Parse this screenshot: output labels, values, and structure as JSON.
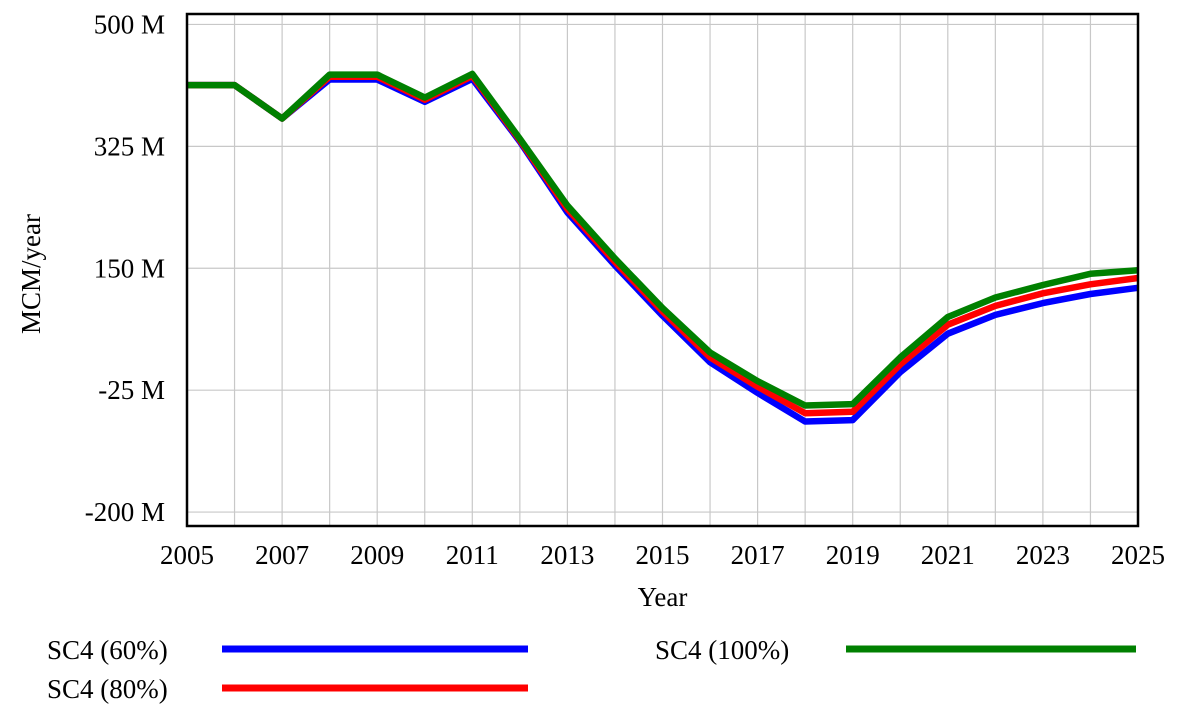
{
  "chart_data": {
    "type": "line",
    "xlabel": "Year",
    "ylabel": "MCM/year",
    "x": [
      2005,
      2006,
      2007,
      2008,
      2009,
      2010,
      2011,
      2012,
      2013,
      2014,
      2015,
      2016,
      2017,
      2018,
      2019,
      2020,
      2021,
      2022,
      2023,
      2024,
      2025
    ],
    "xlim": [
      2005,
      2025
    ],
    "ylim": [
      -220,
      515
    ],
    "x_ticks": [
      2005,
      2007,
      2009,
      2011,
      2013,
      2015,
      2017,
      2019,
      2021,
      2023,
      2025
    ],
    "x_tick_labels": [
      "2005",
      "2007",
      "2009",
      "2011",
      "2013",
      "2015",
      "2017",
      "2019",
      "2021",
      "2023",
      "2025"
    ],
    "y_ticks": [
      500,
      325,
      150,
      -25,
      -200
    ],
    "y_tick_labels": [
      "500 M",
      "325 M",
      "150 M",
      "-25 M",
      "-200 M"
    ],
    "grid": true,
    "legend_position": "bottom",
    "series": [
      {
        "name": "SC4 (60%)",
        "color": "#0000ff",
        "values": [
          413,
          413,
          365,
          421,
          421,
          389,
          422,
          332,
          230,
          154,
          82,
          15,
          -29,
          -70,
          -68,
          1,
          56,
          83,
          100,
          113,
          122
        ]
      },
      {
        "name": "SC4 (80%)",
        "color": "#ff0000",
        "values": [
          413,
          413,
          365,
          425,
          425,
          392,
          426,
          334,
          235,
          159,
          88,
          22,
          -20,
          -58,
          -56,
          12,
          69,
          96,
          114,
          127,
          136
        ]
      },
      {
        "name": "SC4 (100%)",
        "color": "#008000",
        "values": [
          413,
          413,
          365,
          428,
          428,
          395,
          429,
          336,
          240,
          164,
          93,
          29,
          -12,
          -47,
          -45,
          22,
          80,
          108,
          126,
          142,
          147
        ]
      }
    ]
  }
}
